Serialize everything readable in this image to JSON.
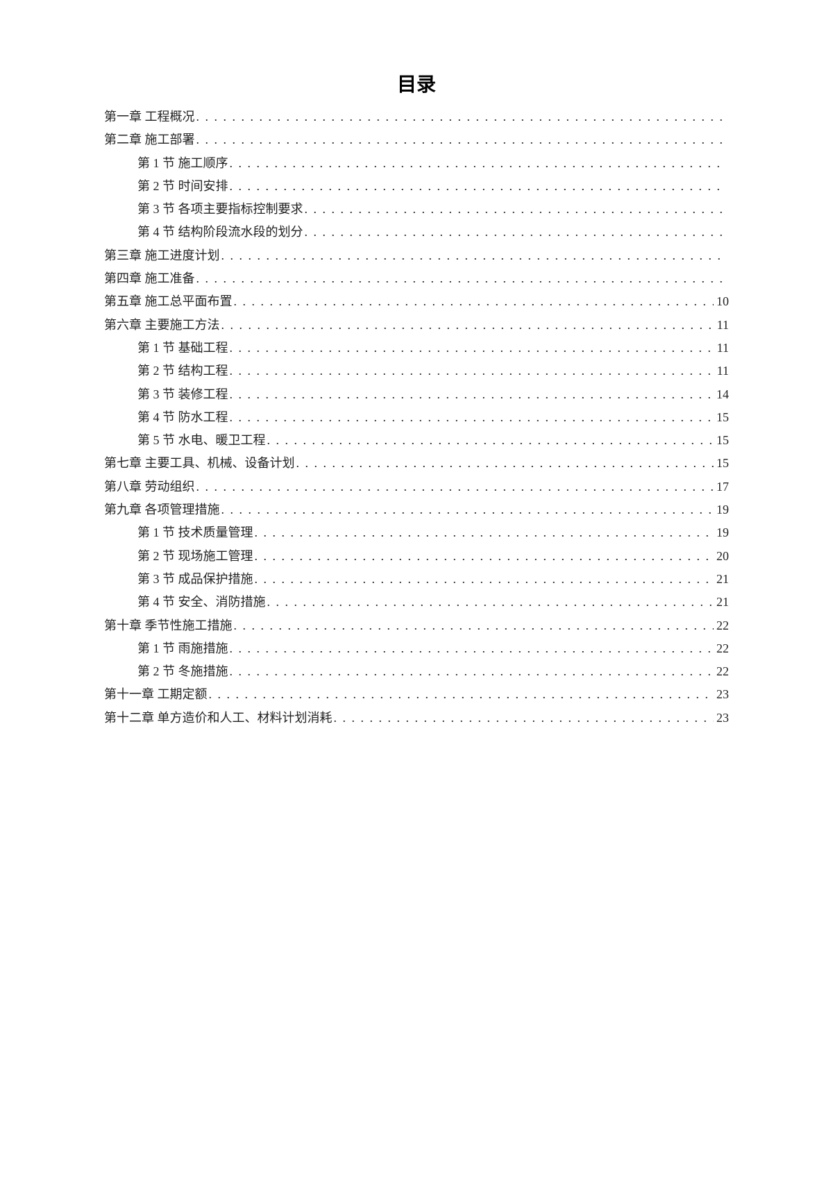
{
  "title": "目录",
  "toc": [
    {
      "level": 1,
      "label": "第一章 工程概况",
      "page": ""
    },
    {
      "level": 1,
      "label": "第二章 施工部署",
      "page": ""
    },
    {
      "level": 2,
      "label": "第 1 节 施工顺序",
      "page": ""
    },
    {
      "level": 2,
      "label": "第 2 节 时间安排",
      "page": ""
    },
    {
      "level": 2,
      "label": "第 3 节 各项主要指标控制要求",
      "page": ""
    },
    {
      "level": 2,
      "label": "第 4 节 结构阶段流水段的划分",
      "page": ""
    },
    {
      "level": 1,
      "label": "第三章 施工进度计划",
      "page": ""
    },
    {
      "level": 1,
      "label": "第四章 施工准备",
      "page": ""
    },
    {
      "level": 1,
      "label": "第五章 施工总平面布置",
      "page": "10"
    },
    {
      "level": 1,
      "label": "第六章 主要施工方法",
      "page": "11"
    },
    {
      "level": 2,
      "label": "第 1 节 基础工程",
      "page": "11"
    },
    {
      "level": 2,
      "label": "第 2 节 结构工程",
      "page": "11"
    },
    {
      "level": 2,
      "label": "第 3 节 装修工程",
      "page": "14"
    },
    {
      "level": 2,
      "label": "第 4 节 防水工程",
      "page": "15"
    },
    {
      "level": 2,
      "label": "第 5 节 水电、暖卫工程",
      "page": "15"
    },
    {
      "level": 1,
      "label": "第七章 主要工具、机械、设备计划",
      "page": "15"
    },
    {
      "level": 1,
      "label": "第八章 劳动组织",
      "page": "17"
    },
    {
      "level": 1,
      "label": "第九章 各项管理措施",
      "page": "19"
    },
    {
      "level": 2,
      "label": "第 1 节 技术质量管理",
      "page": "19"
    },
    {
      "level": 2,
      "label": "第 2 节 现场施工管理",
      "page": "20"
    },
    {
      "level": 2,
      "label": "第 3 节 成品保护措施",
      "page": "21"
    },
    {
      "level": 2,
      "label": "第 4 节 安全、消防措施",
      "page": "21"
    },
    {
      "level": 1,
      "label": "第十章 季节性施工措施",
      "page": "22"
    },
    {
      "level": 2,
      "label": "第 1 节 雨施措施",
      "page": "22"
    },
    {
      "level": 2,
      "label": "第 2 节 冬施措施",
      "page": "22"
    },
    {
      "level": 1,
      "label": "第十一章 工期定额",
      "page": "23"
    },
    {
      "level": 1,
      "label": "第十二章 单方造价和人工、材料计划消耗",
      "page": "23"
    }
  ]
}
